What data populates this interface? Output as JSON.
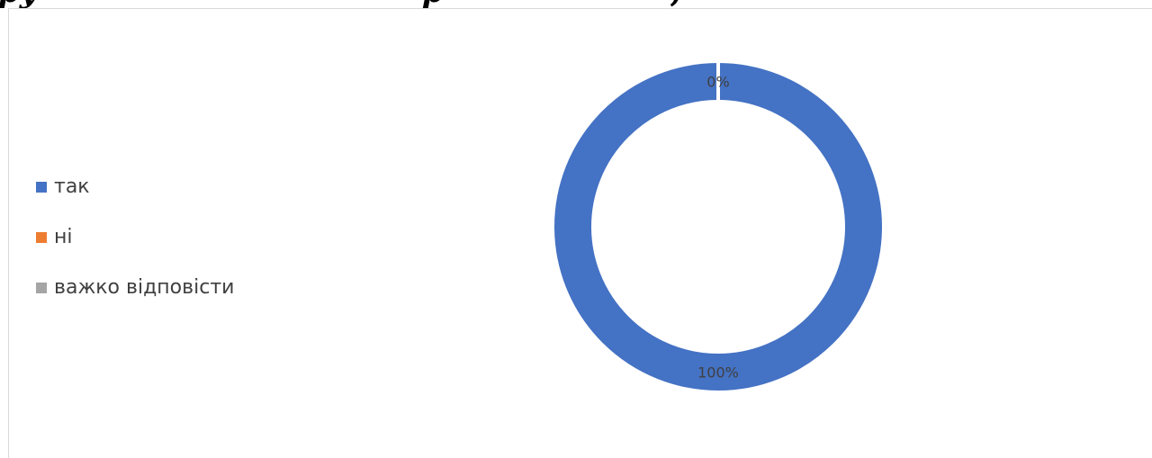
{
  "heading": {
    "visible_text": "",
    "note_color": "#000000"
  },
  "chart_data": {
    "type": "pie",
    "donut": true,
    "title": "",
    "categories": [
      "так",
      "ні",
      "важко відповісти"
    ],
    "values": [
      100,
      0,
      0
    ],
    "colors": [
      "#4472C4",
      "#ED7D31",
      "#A5A5A5"
    ],
    "data_labels": [
      "100%",
      "0%",
      ""
    ],
    "legend_position": "left"
  }
}
